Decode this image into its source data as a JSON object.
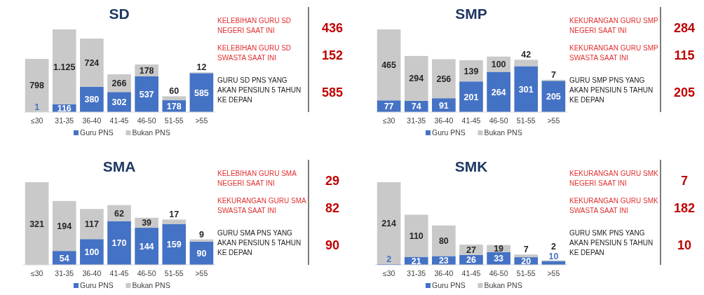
{
  "chart_data": [
    {
      "type": "bar",
      "title": "SD",
      "categories": [
        "≤30",
        "31-35",
        "36-40",
        "41-45",
        "46-50",
        "51-55",
        ">55"
      ],
      "stacked": true,
      "legend": "bottom",
      "series": [
        {
          "name": "Guru PNS",
          "color": "#4472c4",
          "values": [
            1,
            116,
            380,
            302,
            537,
            178,
            585
          ],
          "value_labels": [
            "1",
            "116",
            "380",
            "302",
            "537",
            "178",
            "585"
          ]
        },
        {
          "name": "Bukan PNS",
          "color": "#c9c9c9",
          "values": [
            798,
            1125,
            724,
            266,
            178,
            60,
            12
          ],
          "value_labels": [
            "798",
            "1.125",
            "724",
            "266",
            "178",
            "60",
            "12"
          ]
        }
      ]
    },
    {
      "type": "other",
      "categories": [
        "KELEBIHAN GURU SD NEGERI SAAT INI",
        "KELEBIHAN GURU SD SWASTA SAAT INI",
        "GURU SD PNS YANG AKAN PENSIUN 5 TAHUN KE DEPAN"
      ],
      "values": [
        436,
        152,
        585
      ],
      "colors": [
        "#e03030",
        "#e03030",
        "#222222"
      ],
      "color": "#c00000",
      "data_labels": true
    },
    {
      "type": "bar",
      "title": "SMP",
      "categories": [
        "≤30",
        "31-35",
        "36-40",
        "41-45",
        "46-50",
        "51-55",
        ">55"
      ],
      "stacked": true,
      "legend": "bottom",
      "series": [
        {
          "name": "Guru PNS",
          "color": "#4472c4",
          "values": [
            77,
            74,
            91,
            201,
            264,
            301,
            205
          ],
          "value_labels": [
            "77",
            "74",
            "91",
            "201",
            "264",
            "301",
            "205"
          ]
        },
        {
          "name": "Bukan PNS",
          "color": "#c9c9c9",
          "values": [
            465,
            294,
            256,
            139,
            100,
            42,
            7
          ],
          "value_labels": [
            "465",
            "294",
            "256",
            "139",
            "100",
            "42",
            "7"
          ]
        }
      ]
    },
    {
      "type": "other",
      "categories": [
        "KEKURANGAN GURU SMP NEGERI SAAT INI",
        "KEKURANGAN GURU SMP SWASTA SAAT INI",
        "GURU SMP PNS YANG AKAN PENSIUN 5 TAHUN KE DEPAN"
      ],
      "values": [
        284,
        115,
        205
      ],
      "colors": [
        "#e03030",
        "#e03030",
        "#222222"
      ],
      "color": "#c00000",
      "data_labels": true
    },
    {
      "type": "bar",
      "title": "SMA",
      "categories": [
        "≤30",
        "31-35",
        "36-40",
        "41-45",
        "46-50",
        "51-55",
        ">55"
      ],
      "stacked": true,
      "legend": "bottom",
      "series": [
        {
          "name": "Guru PNS",
          "color": "#4472c4",
          "values": [
            0,
            54,
            100,
            170,
            144,
            159,
            90
          ],
          "value_labels": [
            null,
            "54",
            "100",
            "170",
            "144",
            "159",
            "90"
          ]
        },
        {
          "name": "Bukan PNS",
          "color": "#c9c9c9",
          "values": [
            321,
            194,
            117,
            62,
            39,
            17,
            9
          ],
          "value_labels": [
            "321",
            "194",
            "117",
            "62",
            "39",
            "17",
            "9"
          ]
        }
      ]
    },
    {
      "type": "other",
      "categories": [
        "KELEBIHAN GURU SMA NEGERI SAAT INI",
        "KEKURANGAN GURU SMA SWASTA SAAT INI",
        "GURU SMA PNS YANG AKAN PENSIUN 5 TAHUN KE DEPAN"
      ],
      "values": [
        29,
        82,
        90
      ],
      "colors": [
        "#e03030",
        "#e03030",
        "#222222"
      ],
      "color": "#c00000",
      "data_labels": true
    },
    {
      "type": "bar",
      "title": "SMK",
      "categories": [
        "≤30",
        "31-35",
        "36-40",
        "41-45",
        "46-50",
        "51-55",
        ">55"
      ],
      "stacked": true,
      "legend": "bottom",
      "series": [
        {
          "name": "Guru PNS",
          "color": "#4472c4",
          "values": [
            2,
            21,
            23,
            26,
            33,
            20,
            10
          ],
          "value_labels": [
            "2",
            "21",
            "23",
            "26",
            "33",
            "20",
            "10"
          ]
        },
        {
          "name": "Bukan PNS",
          "color": "#c9c9c9",
          "values": [
            214,
            110,
            80,
            27,
            19,
            7,
            2
          ],
          "value_labels": [
            "214",
            "110",
            "80",
            "27",
            "19",
            "7",
            "2"
          ]
        }
      ]
    },
    {
      "type": "other",
      "categories": [
        "KEKURANGAN GURU SMK NEGERI SAAT INI",
        "KEKURANGAN GURU SMK SWASTA SAAT INI",
        "GURU SMK PNS YANG AKAN PENSIUN 5 TAHUN KE DEPAN"
      ],
      "values": [
        7,
        182,
        10
      ],
      "colors": [
        "#e03030",
        "#e03030",
        "#222222"
      ],
      "color": "#c00000",
      "data_labels": true
    }
  ]
}
